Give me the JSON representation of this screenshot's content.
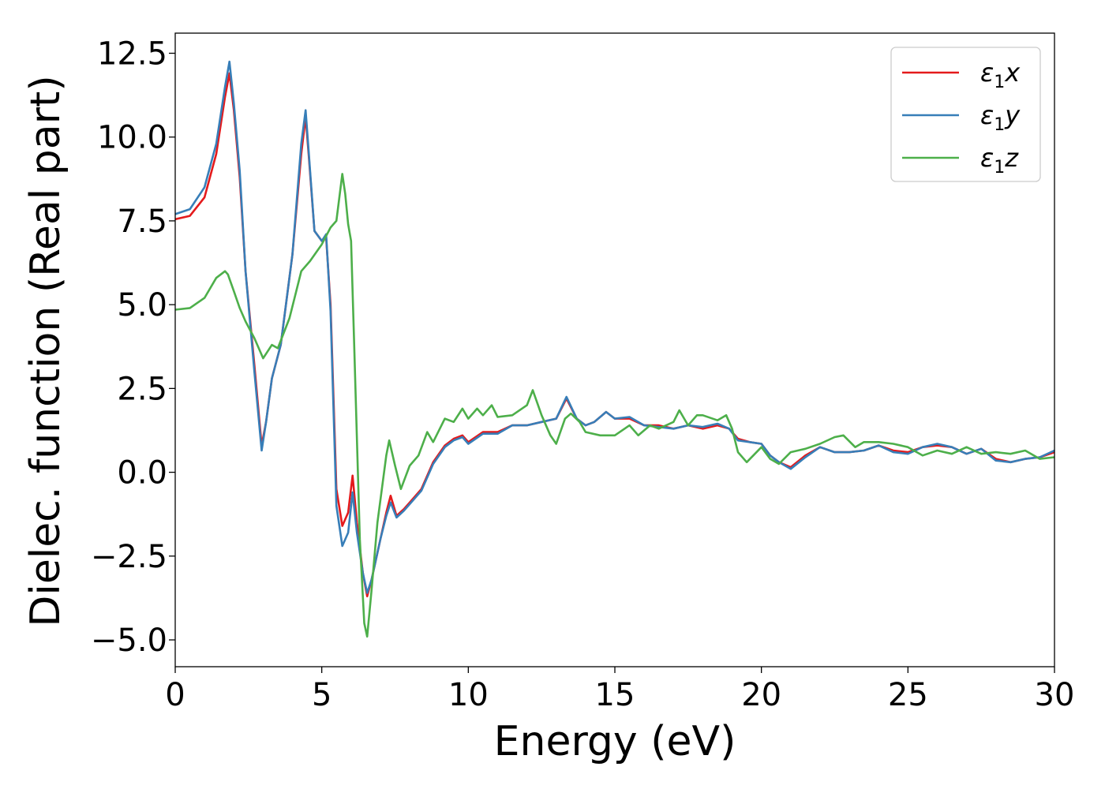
{
  "chart_data": {
    "type": "line",
    "xlabel": "Energy (eV)",
    "ylabel": "Dielec. function (Real part)",
    "xlim": [
      0,
      30
    ],
    "ylim": [
      -5.8,
      13.1
    ],
    "xticks": [
      0,
      5,
      10,
      15,
      20,
      25,
      30
    ],
    "xtick_labels": [
      "0",
      "5",
      "10",
      "15",
      "20",
      "25",
      "30"
    ],
    "yticks": [
      -5.0,
      -2.5,
      0.0,
      2.5,
      5.0,
      7.5,
      10.0,
      12.5
    ],
    "ytick_labels": [
      "−5.0",
      "−2.5",
      "0.0",
      "2.5",
      "5.0",
      "7.5",
      "10.0",
      "12.5"
    ],
    "grid": false,
    "legend_position": "top-right",
    "series": [
      {
        "name": "ε₁x",
        "label_base": "ε",
        "label_sub": "1",
        "label_var": "x",
        "color": "#e41a1c",
        "points": [
          [
            0,
            7.55
          ],
          [
            0.5,
            7.65
          ],
          [
            1.0,
            8.2
          ],
          [
            1.4,
            9.5
          ],
          [
            1.7,
            11.2
          ],
          [
            1.85,
            11.9
          ],
          [
            2.0,
            10.8
          ],
          [
            2.2,
            8.8
          ],
          [
            2.4,
            6.0
          ],
          [
            2.7,
            3.2
          ],
          [
            2.95,
            0.8
          ],
          [
            3.1,
            1.5
          ],
          [
            3.3,
            2.8
          ],
          [
            3.6,
            3.8
          ],
          [
            4.0,
            6.5
          ],
          [
            4.3,
            9.5
          ],
          [
            4.45,
            10.6
          ],
          [
            4.55,
            9.5
          ],
          [
            4.75,
            7.2
          ],
          [
            5.0,
            6.9
          ],
          [
            5.15,
            7.0
          ],
          [
            5.3,
            5.0
          ],
          [
            5.5,
            -0.5
          ],
          [
            5.7,
            -1.6
          ],
          [
            5.9,
            -1.2
          ],
          [
            6.05,
            -0.1
          ],
          [
            6.2,
            -1.5
          ],
          [
            6.4,
            -3.0
          ],
          [
            6.55,
            -3.7
          ],
          [
            6.7,
            -3.2
          ],
          [
            7.0,
            -2.0
          ],
          [
            7.2,
            -1.2
          ],
          [
            7.35,
            -0.7
          ],
          [
            7.55,
            -1.3
          ],
          [
            7.8,
            -1.1
          ],
          [
            8.0,
            -0.9
          ],
          [
            8.4,
            -0.5
          ],
          [
            8.8,
            0.3
          ],
          [
            9.2,
            0.8
          ],
          [
            9.5,
            1.0
          ],
          [
            9.8,
            1.1
          ],
          [
            10.0,
            0.9
          ],
          [
            10.5,
            1.2
          ],
          [
            11.0,
            1.2
          ],
          [
            11.5,
            1.4
          ],
          [
            12.0,
            1.4
          ],
          [
            12.5,
            1.5
          ],
          [
            13.0,
            1.6
          ],
          [
            13.35,
            2.2
          ],
          [
            13.7,
            1.6
          ],
          [
            14.0,
            1.4
          ],
          [
            14.3,
            1.5
          ],
          [
            14.7,
            1.8
          ],
          [
            15.0,
            1.6
          ],
          [
            15.5,
            1.6
          ],
          [
            16.0,
            1.4
          ],
          [
            16.5,
            1.4
          ],
          [
            17.0,
            1.3
          ],
          [
            17.5,
            1.4
          ],
          [
            18.0,
            1.3
          ],
          [
            18.5,
            1.4
          ],
          [
            18.9,
            1.3
          ],
          [
            19.2,
            1.0
          ],
          [
            19.6,
            0.9
          ],
          [
            20.0,
            0.85
          ],
          [
            20.3,
            0.5
          ],
          [
            20.6,
            0.3
          ],
          [
            21.0,
            0.15
          ],
          [
            21.5,
            0.5
          ],
          [
            22.0,
            0.75
          ],
          [
            22.5,
            0.6
          ],
          [
            23.0,
            0.6
          ],
          [
            23.5,
            0.65
          ],
          [
            24.0,
            0.8
          ],
          [
            24.5,
            0.65
          ],
          [
            25.0,
            0.6
          ],
          [
            25.5,
            0.75
          ],
          [
            26.0,
            0.8
          ],
          [
            26.5,
            0.75
          ],
          [
            27.0,
            0.55
          ],
          [
            27.5,
            0.7
          ],
          [
            28.0,
            0.4
          ],
          [
            28.5,
            0.3
          ],
          [
            29.0,
            0.4
          ],
          [
            29.5,
            0.45
          ],
          [
            30.0,
            0.6
          ]
        ]
      },
      {
        "name": "ε₁y",
        "label_base": "ε",
        "label_sub": "1",
        "label_var": "y",
        "color": "#377eb8",
        "points": [
          [
            0,
            7.7
          ],
          [
            0.5,
            7.85
          ],
          [
            1.0,
            8.5
          ],
          [
            1.4,
            9.8
          ],
          [
            1.7,
            11.5
          ],
          [
            1.85,
            12.25
          ],
          [
            2.0,
            11.0
          ],
          [
            2.2,
            9.0
          ],
          [
            2.4,
            6.0
          ],
          [
            2.7,
            3.0
          ],
          [
            2.95,
            0.65
          ],
          [
            3.1,
            1.5
          ],
          [
            3.3,
            2.8
          ],
          [
            3.6,
            3.8
          ],
          [
            4.0,
            6.5
          ],
          [
            4.3,
            9.8
          ],
          [
            4.45,
            10.8
          ],
          [
            4.55,
            9.6
          ],
          [
            4.75,
            7.2
          ],
          [
            5.0,
            6.9
          ],
          [
            5.15,
            7.1
          ],
          [
            5.3,
            4.8
          ],
          [
            5.5,
            -1.0
          ],
          [
            5.7,
            -2.2
          ],
          [
            5.9,
            -1.8
          ],
          [
            6.05,
            -0.6
          ],
          [
            6.2,
            -1.8
          ],
          [
            6.4,
            -3.0
          ],
          [
            6.55,
            -3.6
          ],
          [
            6.7,
            -3.2
          ],
          [
            7.0,
            -2.0
          ],
          [
            7.2,
            -1.3
          ],
          [
            7.35,
            -0.9
          ],
          [
            7.55,
            -1.35
          ],
          [
            7.8,
            -1.15
          ],
          [
            8.0,
            -0.95
          ],
          [
            8.4,
            -0.55
          ],
          [
            8.8,
            0.25
          ],
          [
            9.2,
            0.75
          ],
          [
            9.5,
            0.95
          ],
          [
            9.8,
            1.05
          ],
          [
            10.0,
            0.85
          ],
          [
            10.5,
            1.15
          ],
          [
            11.0,
            1.15
          ],
          [
            11.5,
            1.4
          ],
          [
            12.0,
            1.4
          ],
          [
            12.5,
            1.5
          ],
          [
            13.0,
            1.6
          ],
          [
            13.35,
            2.25
          ],
          [
            13.7,
            1.6
          ],
          [
            14.0,
            1.4
          ],
          [
            14.3,
            1.5
          ],
          [
            14.7,
            1.8
          ],
          [
            15.0,
            1.6
          ],
          [
            15.5,
            1.65
          ],
          [
            16.0,
            1.4
          ],
          [
            16.5,
            1.35
          ],
          [
            17.0,
            1.3
          ],
          [
            17.5,
            1.4
          ],
          [
            18.0,
            1.35
          ],
          [
            18.5,
            1.45
          ],
          [
            18.9,
            1.3
          ],
          [
            19.2,
            0.95
          ],
          [
            19.6,
            0.9
          ],
          [
            20.0,
            0.85
          ],
          [
            20.3,
            0.5
          ],
          [
            20.6,
            0.3
          ],
          [
            21.0,
            0.1
          ],
          [
            21.5,
            0.45
          ],
          [
            22.0,
            0.75
          ],
          [
            22.5,
            0.6
          ],
          [
            23.0,
            0.6
          ],
          [
            23.5,
            0.65
          ],
          [
            24.0,
            0.8
          ],
          [
            24.5,
            0.6
          ],
          [
            25.0,
            0.55
          ],
          [
            25.5,
            0.75
          ],
          [
            26.0,
            0.85
          ],
          [
            26.5,
            0.75
          ],
          [
            27.0,
            0.55
          ],
          [
            27.5,
            0.7
          ],
          [
            28.0,
            0.35
          ],
          [
            28.5,
            0.3
          ],
          [
            29.0,
            0.4
          ],
          [
            29.5,
            0.45
          ],
          [
            30.0,
            0.65
          ]
        ]
      },
      {
        "name": "ε₁z",
        "label_base": "ε",
        "label_sub": "1",
        "label_var": "z",
        "color": "#4daf4a",
        "points": [
          [
            0,
            4.85
          ],
          [
            0.5,
            4.9
          ],
          [
            1.0,
            5.2
          ],
          [
            1.4,
            5.8
          ],
          [
            1.7,
            6.0
          ],
          [
            1.8,
            5.9
          ],
          [
            2.0,
            5.4
          ],
          [
            2.2,
            4.9
          ],
          [
            2.4,
            4.5
          ],
          [
            2.7,
            4.0
          ],
          [
            3.0,
            3.4
          ],
          [
            3.3,
            3.8
          ],
          [
            3.5,
            3.7
          ],
          [
            3.9,
            4.6
          ],
          [
            4.3,
            6.0
          ],
          [
            4.6,
            6.3
          ],
          [
            5.0,
            6.8
          ],
          [
            5.3,
            7.3
          ],
          [
            5.5,
            7.5
          ],
          [
            5.7,
            8.9
          ],
          [
            5.8,
            8.3
          ],
          [
            5.9,
            7.4
          ],
          [
            6.0,
            6.9
          ],
          [
            6.1,
            4.0
          ],
          [
            6.3,
            -2.0
          ],
          [
            6.45,
            -4.5
          ],
          [
            6.55,
            -4.9
          ],
          [
            6.7,
            -3.5
          ],
          [
            6.9,
            -1.5
          ],
          [
            7.2,
            0.5
          ],
          [
            7.3,
            0.95
          ],
          [
            7.5,
            0.2
          ],
          [
            7.7,
            -0.5
          ],
          [
            8.0,
            0.2
          ],
          [
            8.3,
            0.5
          ],
          [
            8.6,
            1.2
          ],
          [
            8.8,
            0.9
          ],
          [
            9.2,
            1.6
          ],
          [
            9.5,
            1.5
          ],
          [
            9.8,
            1.9
          ],
          [
            10.0,
            1.6
          ],
          [
            10.3,
            1.9
          ],
          [
            10.5,
            1.7
          ],
          [
            10.8,
            2.0
          ],
          [
            11.0,
            1.65
          ],
          [
            11.5,
            1.7
          ],
          [
            12.0,
            2.0
          ],
          [
            12.2,
            2.45
          ],
          [
            12.5,
            1.7
          ],
          [
            12.8,
            1.1
          ],
          [
            13.0,
            0.85
          ],
          [
            13.3,
            1.6
          ],
          [
            13.5,
            1.75
          ],
          [
            13.8,
            1.5
          ],
          [
            14.0,
            1.2
          ],
          [
            14.5,
            1.1
          ],
          [
            15.0,
            1.1
          ],
          [
            15.5,
            1.4
          ],
          [
            15.8,
            1.1
          ],
          [
            16.2,
            1.4
          ],
          [
            16.5,
            1.3
          ],
          [
            17.0,
            1.5
          ],
          [
            17.2,
            1.85
          ],
          [
            17.5,
            1.4
          ],
          [
            17.8,
            1.7
          ],
          [
            18.0,
            1.7
          ],
          [
            18.5,
            1.55
          ],
          [
            18.8,
            1.7
          ],
          [
            19.0,
            1.3
          ],
          [
            19.2,
            0.6
          ],
          [
            19.5,
            0.3
          ],
          [
            20.0,
            0.75
          ],
          [
            20.3,
            0.4
          ],
          [
            20.6,
            0.25
          ],
          [
            21.0,
            0.6
          ],
          [
            21.5,
            0.7
          ],
          [
            22.0,
            0.85
          ],
          [
            22.5,
            1.05
          ],
          [
            22.8,
            1.1
          ],
          [
            23.2,
            0.75
          ],
          [
            23.5,
            0.9
          ],
          [
            24.0,
            0.9
          ],
          [
            24.5,
            0.85
          ],
          [
            25.0,
            0.75
          ],
          [
            25.5,
            0.5
          ],
          [
            26.0,
            0.65
          ],
          [
            26.5,
            0.55
          ],
          [
            27.0,
            0.75
          ],
          [
            27.5,
            0.55
          ],
          [
            28.0,
            0.6
          ],
          [
            28.5,
            0.55
          ],
          [
            29.0,
            0.65
          ],
          [
            29.5,
            0.4
          ],
          [
            30.0,
            0.45
          ]
        ]
      }
    ]
  }
}
